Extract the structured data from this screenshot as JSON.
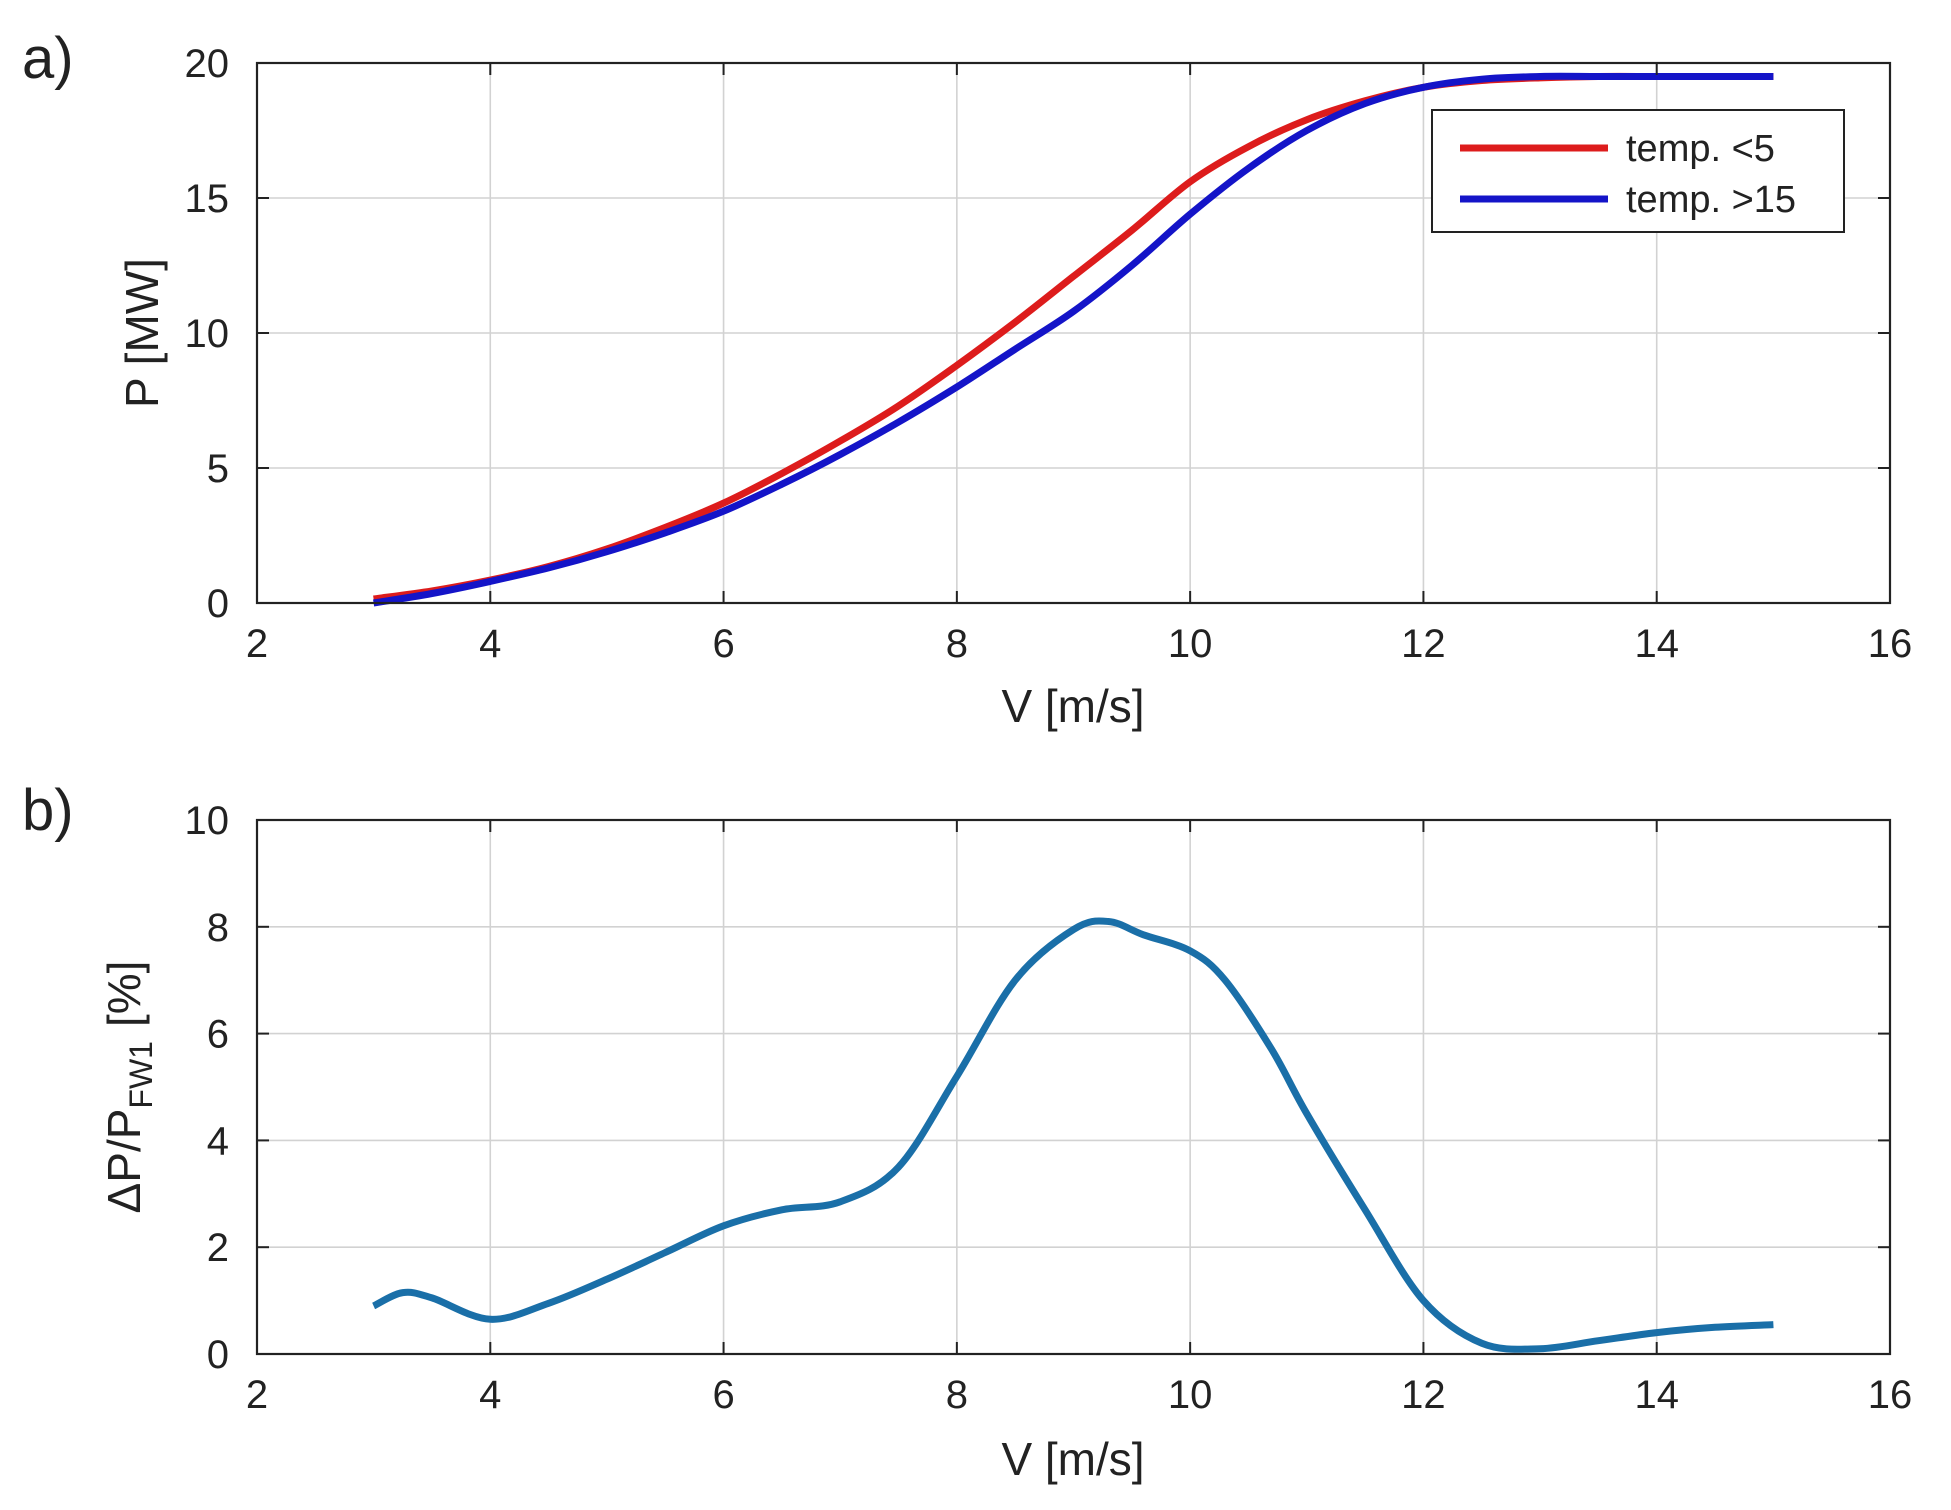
{
  "chart_data": [
    {
      "panel_label": "a)",
      "type": "line",
      "xlabel": "V [m/s]",
      "ylabel": "P [MW]",
      "xlim": [
        2,
        16
      ],
      "ylim": [
        0,
        20
      ],
      "xticks": [
        2,
        4,
        6,
        8,
        10,
        12,
        14,
        16
      ],
      "yticks": [
        0,
        5,
        10,
        15,
        20
      ],
      "grid": true,
      "legend_position": "top-right",
      "series": [
        {
          "name": "temp. <5",
          "color": "#dd1c1c",
          "x": [
            3,
            3.5,
            4,
            4.5,
            5,
            5.5,
            6,
            6.5,
            7,
            7.5,
            8,
            8.5,
            9,
            9.5,
            10,
            10.5,
            11,
            11.5,
            12,
            12.5,
            13,
            13.5,
            14,
            14.5,
            15
          ],
          "y": [
            0.15,
            0.45,
            0.85,
            1.35,
            2.0,
            2.8,
            3.7,
            4.8,
            6.0,
            7.3,
            8.8,
            10.4,
            12.1,
            13.8,
            15.6,
            16.9,
            17.9,
            18.6,
            19.1,
            19.35,
            19.45,
            19.5,
            19.5,
            19.5,
            19.5
          ]
        },
        {
          "name": "temp. >15",
          "color": "#1414c8",
          "x": [
            3,
            3.5,
            4,
            4.5,
            5,
            5.5,
            6,
            6.5,
            7,
            7.5,
            8,
            8.5,
            9,
            9.5,
            10,
            10.5,
            11,
            11.5,
            12,
            12.5,
            13,
            13.5,
            14,
            14.5,
            15
          ],
          "y": [
            0.0,
            0.35,
            0.8,
            1.3,
            1.9,
            2.6,
            3.4,
            4.4,
            5.5,
            6.7,
            8.0,
            9.4,
            10.8,
            12.5,
            14.4,
            16.1,
            17.5,
            18.5,
            19.1,
            19.4,
            19.5,
            19.5,
            19.5,
            19.5,
            19.5
          ]
        }
      ]
    },
    {
      "panel_label": "b)",
      "type": "line",
      "xlabel": "V [m/s]",
      "ylabel_main": "ΔP/P",
      "ylabel_sub": "FW1",
      "ylabel_unit": "[%]",
      "xlim": [
        2,
        16
      ],
      "ylim": [
        0,
        10
      ],
      "xticks": [
        2,
        4,
        6,
        8,
        10,
        12,
        14,
        16
      ],
      "yticks": [
        0,
        2,
        4,
        6,
        8,
        10
      ],
      "grid": true,
      "series": [
        {
          "name": "ΔP/P_FW1",
          "color": "#1a6fa8",
          "x": [
            3,
            3.25,
            3.5,
            4,
            4.5,
            5,
            5.5,
            6,
            6.5,
            7,
            7.5,
            8,
            8.5,
            9,
            9.3,
            9.6,
            10,
            10.3,
            10.7,
            11,
            11.5,
            12,
            12.5,
            13,
            13.5,
            14,
            14.5,
            15
          ],
          "y": [
            0.9,
            1.15,
            1.05,
            0.65,
            0.95,
            1.4,
            1.9,
            2.4,
            2.7,
            2.85,
            3.5,
            5.2,
            7.0,
            7.95,
            8.1,
            7.85,
            7.55,
            7.0,
            5.7,
            4.5,
            2.7,
            1.0,
            0.2,
            0.1,
            0.25,
            0.4,
            0.5,
            0.55
          ]
        }
      ]
    }
  ]
}
